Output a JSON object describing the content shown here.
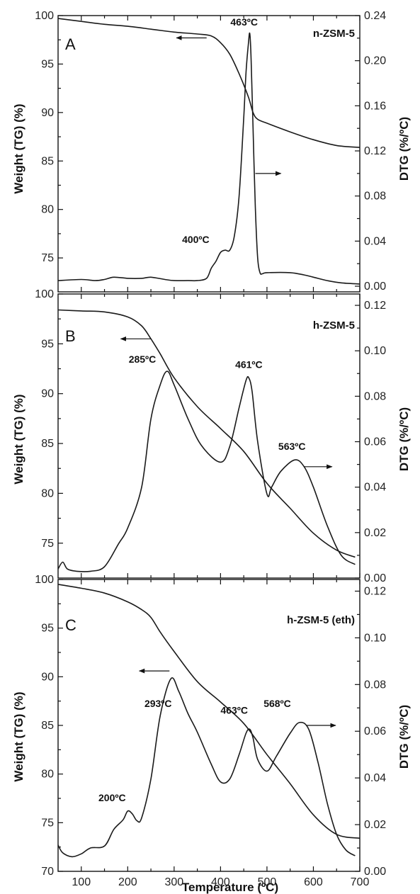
{
  "chart_data": [
    {
      "type": "line",
      "panel_label": "A",
      "title": "n-ZSM-5",
      "xlim": [
        50,
        700
      ],
      "left_axis": {
        "label": "Weight (TG) (%)",
        "ylim": [
          71.5,
          100
        ],
        "ticks": [
          "75",
          "80",
          "85",
          "90",
          "95",
          "100"
        ],
        "tick_values": [
          75,
          80,
          85,
          90,
          95,
          100
        ]
      },
      "right_axis": {
        "label": "DTG (%/ºC)",
        "ylim": [
          -0.005,
          0.24
        ],
        "ticks": [
          "0.00",
          "0.04",
          "0.08",
          "0.12",
          "0.16",
          "0.20",
          "0.24"
        ],
        "tick_values": [
          0,
          0.04,
          0.08,
          0.12,
          0.16,
          0.2,
          0.24
        ]
      },
      "series": [
        {
          "axis": "left",
          "x": [
            50,
            100,
            150,
            200,
            250,
            300,
            350,
            380,
            400,
            420,
            440,
            460,
            470,
            480,
            500,
            550,
            600,
            650,
            700
          ],
          "values": [
            99.7,
            99.4,
            99.1,
            98.9,
            98.6,
            98.3,
            98.1,
            97.9,
            97.2,
            96.0,
            94.0,
            91.6,
            90.0,
            89.3,
            88.9,
            88.0,
            87.2,
            86.6,
            86.4
          ]
        },
        {
          "axis": "right",
          "x": [
            50,
            100,
            130,
            150,
            170,
            200,
            230,
            250,
            280,
            300,
            330,
            350,
            370,
            380,
            390,
            400,
            410,
            420,
            430,
            440,
            450,
            455,
            460,
            463,
            466,
            470,
            475,
            480,
            485,
            490,
            500,
            550,
            580,
            600,
            630,
            660,
            700
          ],
          "values": [
            0.005,
            0.006,
            0.005,
            0.006,
            0.008,
            0.007,
            0.007,
            0.008,
            0.006,
            0.005,
            0.005,
            0.005,
            0.007,
            0.016,
            0.022,
            0.03,
            0.032,
            0.032,
            0.045,
            0.08,
            0.15,
            0.19,
            0.215,
            0.224,
            0.2,
            0.14,
            0.07,
            0.025,
            0.012,
            0.011,
            0.012,
            0.012,
            0.01,
            0.008,
            0.005,
            0.003,
            0.002
          ]
        }
      ],
      "annotations": [
        {
          "text": "463ºC",
          "x": 463,
          "axis": "right",
          "y": 0.225
        },
        {
          "text": "400ºC",
          "x": 400,
          "axis": "right",
          "y": 0.032
        }
      ],
      "arrows": [
        {
          "direction": "left",
          "axis": "left",
          "y": 97.7,
          "x_from": 370,
          "x_to": 305
        },
        {
          "direction": "right",
          "axis": "right",
          "y": 0.1,
          "x_from": 475,
          "x_to": 530
        }
      ]
    },
    {
      "type": "line",
      "panel_label": "B",
      "title": "h-ZSM-5",
      "xlim": [
        50,
        700
      ],
      "left_axis": {
        "label": "Weight (TG) (%)",
        "ylim": [
          71.5,
          100
        ],
        "ticks": [
          "75",
          "80",
          "85",
          "90",
          "95",
          "100"
        ],
        "tick_values": [
          75,
          80,
          85,
          90,
          95,
          100
        ]
      },
      "right_axis": {
        "label": "DTG (%/ºC)",
        "ylim": [
          0.0,
          0.125
        ],
        "ticks": [
          "0.00",
          "0.02",
          "0.04",
          "0.06",
          "0.08",
          "0.10",
          "0.12"
        ],
        "tick_values": [
          0,
          0.02,
          0.04,
          0.06,
          0.08,
          0.1,
          0.12
        ]
      },
      "series": [
        {
          "axis": "left",
          "x": [
            50,
            100,
            150,
            200,
            230,
            250,
            270,
            300,
            350,
            400,
            450,
            500,
            550,
            600,
            650,
            690
          ],
          "values": [
            98.4,
            98.3,
            98.2,
            97.7,
            96.8,
            95.5,
            94.0,
            91.6,
            88.7,
            86.5,
            84.2,
            81.0,
            78.5,
            76.0,
            74.3,
            73.6
          ]
        },
        {
          "axis": "right",
          "x": [
            50,
            60,
            70,
            90,
            120,
            150,
            180,
            200,
            230,
            250,
            270,
            285,
            300,
            330,
            360,
            400,
            420,
            440,
            455,
            461,
            468,
            480,
            500,
            510,
            530,
            560,
            580,
            600,
            630,
            660,
            690
          ],
          "values": [
            0.004,
            0.007,
            0.004,
            0.003,
            0.003,
            0.005,
            0.015,
            0.022,
            0.04,
            0.07,
            0.085,
            0.091,
            0.085,
            0.07,
            0.058,
            0.051,
            0.058,
            0.075,
            0.087,
            0.088,
            0.082,
            0.06,
            0.037,
            0.04,
            0.047,
            0.052,
            0.049,
            0.04,
            0.023,
            0.01,
            0.006
          ]
        }
      ],
      "annotations": [
        {
          "text": "285ºC",
          "x": 285,
          "axis": "right",
          "y": 0.091
        },
        {
          "text": "461ºC",
          "x": 461,
          "axis": "right",
          "y": 0.088
        },
        {
          "text": "563ºC",
          "x": 563,
          "axis": "right",
          "y": 0.052
        }
      ],
      "arrows": [
        {
          "direction": "left",
          "axis": "left",
          "y": 95.5,
          "x_from": 250,
          "x_to": 185
        },
        {
          "direction": "right",
          "axis": "right",
          "y": 0.049,
          "x_from": 580,
          "x_to": 640
        }
      ]
    },
    {
      "type": "line",
      "panel_label": "C",
      "title": "h-ZSM-5 (eth)",
      "xlim": [
        50,
        700
      ],
      "xlabel": "Temperature (ºC)",
      "xticks": [
        "100",
        "200",
        "300",
        "400",
        "500",
        "600",
        "700"
      ],
      "xtick_values": [
        100,
        200,
        300,
        400,
        500,
        600,
        700
      ],
      "left_axis": {
        "label": "Weight (TG) (%)",
        "ylim": [
          70,
          100
        ],
        "ticks": [
          "70",
          "75",
          "80",
          "85",
          "90",
          "95",
          "100"
        ],
        "tick_values": [
          70,
          75,
          80,
          85,
          90,
          95,
          100
        ]
      },
      "right_axis": {
        "label": "DTG (%/ºC)",
        "ylim": [
          0.0,
          0.125
        ],
        "ticks": [
          "0.00",
          "0.02",
          "0.04",
          "0.06",
          "0.08",
          "0.10",
          "0.12"
        ],
        "tick_values": [
          0,
          0.02,
          0.04,
          0.06,
          0.08,
          0.1,
          0.12
        ]
      },
      "series": [
        {
          "axis": "left",
          "x": [
            50,
            100,
            150,
            200,
            230,
            250,
            270,
            300,
            350,
            400,
            450,
            500,
            550,
            600,
            650,
            700
          ],
          "values": [
            99.5,
            99.1,
            98.6,
            97.7,
            96.9,
            96.1,
            94.6,
            92.6,
            89.5,
            87.4,
            85.2,
            82.0,
            79.0,
            75.8,
            73.8,
            73.4
          ]
        },
        {
          "axis": "left",
          "x": [
            50,
            60,
            80,
            100,
            120,
            150,
            170,
            190,
            200,
            210,
            220,
            230,
            250,
            270,
            293,
            310,
            330,
            350,
            380,
            400,
            420,
            440,
            455,
            463,
            470,
            480,
            500,
            520,
            550,
            570,
            590,
            610,
            630,
            650,
            670,
            690
          ],
          "values": [
            72.7,
            71.9,
            71.5,
            71.8,
            72.4,
            72.6,
            74.3,
            75.3,
            76.2,
            75.9,
            75.2,
            75.5,
            79.5,
            86.0,
            89.8,
            88.5,
            86.2,
            84.3,
            81.0,
            79.2,
            79.5,
            82.0,
            84.2,
            84.6,
            83.7,
            81.5,
            80.3,
            81.8,
            84.2,
            85.3,
            84.6,
            81.2,
            77.0,
            73.8,
            72.2,
            71.6
          ]
        }
      ],
      "annotations": [
        {
          "text": "200ºC",
          "x": 200,
          "axis": "left",
          "y": 76.2
        },
        {
          "text": "293ºC",
          "x": 293,
          "axis": "left",
          "y": 89.8
        },
        {
          "text": "463ºC",
          "x": 463,
          "axis": "left",
          "y": 84.6
        },
        {
          "text": "568ºC",
          "x": 568,
          "axis": "left",
          "y": 85.3
        }
      ],
      "arrows": [
        {
          "direction": "left",
          "axis": "left",
          "y": 90.6,
          "x_from": 290,
          "x_to": 225
        },
        {
          "direction": "right",
          "axis": "left",
          "y": 85.0,
          "x_from": 585,
          "x_to": 648
        }
      ]
    }
  ]
}
